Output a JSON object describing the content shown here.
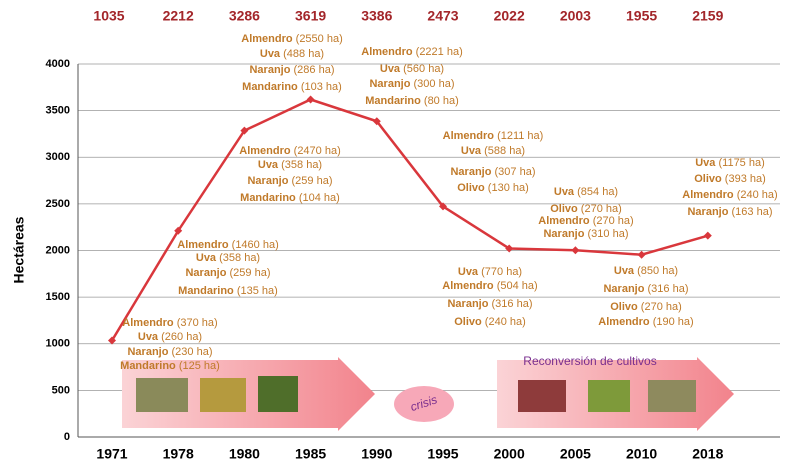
{
  "chart_data": {
    "type": "line",
    "y_label": "Hectáreas",
    "categories": [
      "1971",
      "1978",
      "1980",
      "1985",
      "1990",
      "1995",
      "2000",
      "2005",
      "2010",
      "2018"
    ],
    "values": [
      1035,
      2212,
      3286,
      3619,
      3386,
      2473,
      2022,
      2003,
      1955,
      2159
    ],
    "color": "#d9373c",
    "value_label_color": "#a3262a",
    "ylim": [
      0,
      4000
    ],
    "yticks": [
      0,
      500,
      1000,
      1500,
      2000,
      2500,
      3000,
      3500,
      4000
    ],
    "grid": true,
    "annotations": [
      {
        "lines": [
          {
            "crop": "Almendro",
            "area": "(370 ha)"
          },
          {
            "crop": "Uva",
            "area": "(260 ha)"
          },
          {
            "crop": "Naranjo",
            "area": "(230 ha)"
          },
          {
            "crop": "Mandarino",
            "area": "(125 ha)"
          }
        ]
      },
      {
        "lines": [
          {
            "crop": "Almendro",
            "area": "(1460 ha)"
          },
          {
            "crop": "Uva",
            "area": "(358 ha)"
          },
          {
            "crop": "Naranjo",
            "area": "(259 ha)"
          },
          {
            "crop": "Mandarino",
            "area": "(135 ha)"
          }
        ]
      },
      {
        "lines": [
          {
            "crop": "Almendro",
            "area": "(2470 ha)"
          },
          {
            "crop": "Uva",
            "area": "(358 ha)"
          },
          {
            "crop": "Naranjo",
            "area": "(259 ha)"
          },
          {
            "crop": "Mandarino",
            "area": "(104 ha)"
          }
        ]
      },
      {
        "lines": [
          {
            "crop": "Almendro",
            "area": "(2550 ha)"
          },
          {
            "crop": "Uva",
            "area": "(488 ha)"
          },
          {
            "crop": "Naranjo",
            "area": "(286 ha)"
          },
          {
            "crop": "Mandarino",
            "area": "(103 ha)"
          }
        ]
      },
      {
        "lines": [
          {
            "crop": "Almendro",
            "area": "(2221 ha)"
          },
          {
            "crop": "Uva",
            "area": "(560 ha)"
          },
          {
            "crop": "Naranjo",
            "area": "(300 ha)"
          },
          {
            "crop": "Mandarino",
            "area": "(80 ha)"
          }
        ]
      },
      {
        "lines": [
          {
            "crop": "Almendro",
            "area": "(1211 ha)"
          },
          {
            "crop": "Uva",
            "area": "(588 ha)"
          },
          {
            "crop": "Naranjo",
            "area": "(307 ha)"
          },
          {
            "crop": "Olivo",
            "area": "(130 ha)"
          }
        ]
      },
      {
        "lines": [
          {
            "crop": "Uva",
            "area": "(770 ha)"
          },
          {
            "crop": "Almendro",
            "area": "(504 ha)"
          },
          {
            "crop": "Naranjo",
            "area": "(316 ha)"
          },
          {
            "crop": "Olivo",
            "area": "(240 ha)"
          }
        ]
      },
      {
        "lines": [
          {
            "crop": "Uva",
            "area": "(854 ha)"
          },
          {
            "crop": "Olivo",
            "area": "(270 ha)"
          },
          {
            "crop": "Almendro",
            "area": "(270 ha)"
          },
          {
            "crop": "Naranjo",
            "area": "(310 ha)"
          }
        ]
      },
      {
        "lines": [
          {
            "crop": "Uva",
            "area": "(850 ha)"
          },
          {
            "crop": "Naranjo",
            "area": "(316 ha)"
          },
          {
            "crop": "Olivo",
            "area": "(270 ha)"
          },
          {
            "crop": "Almendro",
            "area": "(190 ha)"
          }
        ]
      },
      {
        "lines": [
          {
            "crop": "Uva",
            "area": "(1175 ha)"
          },
          {
            "crop": "Olivo",
            "area": "(393 ha)"
          },
          {
            "crop": "Almendro",
            "area": "(240 ha)"
          },
          {
            "crop": "Naranjo",
            "area": "(163 ha)"
          }
        ]
      }
    ],
    "crisis_label": "crisis",
    "reconversion_label": "Reconversión de cultivos"
  }
}
